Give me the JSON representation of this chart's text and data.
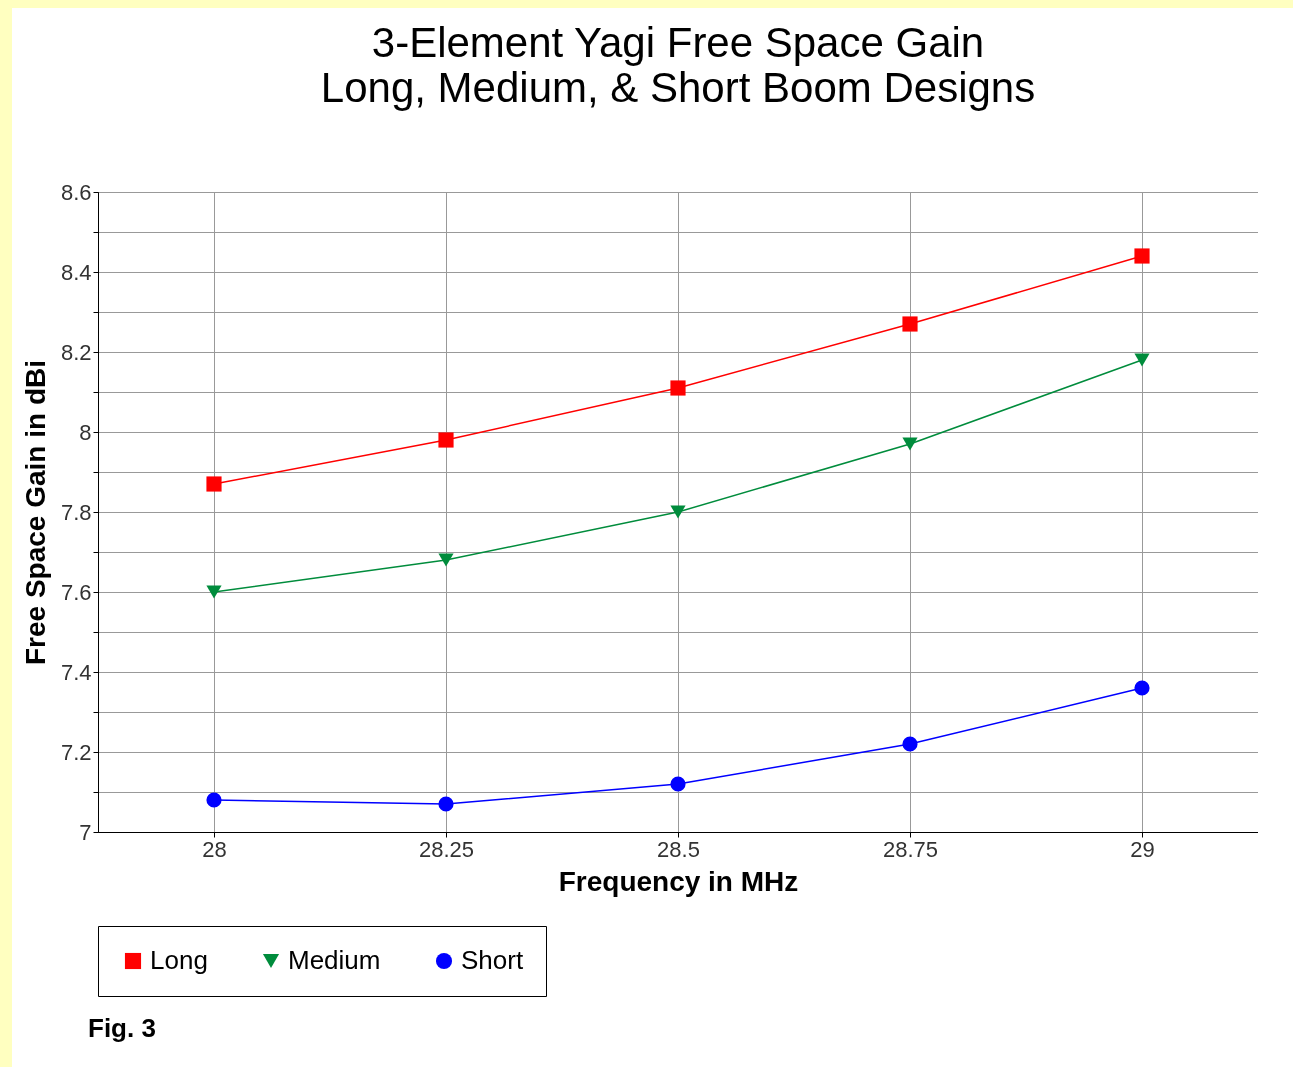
{
  "chart_data": {
    "type": "line",
    "title": "3-Element Yagi Free Space Gain",
    "subtitle": "Long, Medium, & Short Boom Designs",
    "xlabel": "Frequency in MHz",
    "ylabel": "Free Space Gain in dBi",
    "x": [
      28,
      28.25,
      28.5,
      28.75,
      29
    ],
    "series": [
      {
        "name": "Long",
        "color": "#ff0000",
        "marker": "square",
        "values": [
          7.87,
          7.98,
          8.11,
          8.27,
          8.44
        ]
      },
      {
        "name": "Medium",
        "color": "#008c3c",
        "marker": "triangle",
        "values": [
          7.6,
          7.68,
          7.8,
          7.97,
          8.18
        ]
      },
      {
        "name": "Short",
        "color": "#0000ff",
        "marker": "circle",
        "values": [
          7.08,
          7.07,
          7.12,
          7.22,
          7.36
        ]
      }
    ],
    "xlim": [
      27.875,
      29.125
    ],
    "xticks": [
      28,
      28.25,
      28.5,
      28.75,
      29
    ],
    "ylim": [
      7,
      8.6
    ],
    "yticks": [
      7,
      {
        "value": 7.1,
        "label": null
      },
      7.2,
      {
        "value": 7.3,
        "label": null
      },
      7.4,
      {
        "value": 7.5,
        "label": null
      },
      7.6,
      {
        "value": 7.7,
        "label": null
      },
      7.8,
      {
        "value": 7.9,
        "label": null
      },
      8,
      {
        "value": 8.1,
        "label": null
      },
      8.2,
      {
        "value": 8.3,
        "label": null
      },
      8.4,
      {
        "value": 8.5,
        "label": null
      },
      8.6
    ],
    "grid": true,
    "legend": "bottom",
    "annotations": [
      "Fig. 3"
    ]
  }
}
